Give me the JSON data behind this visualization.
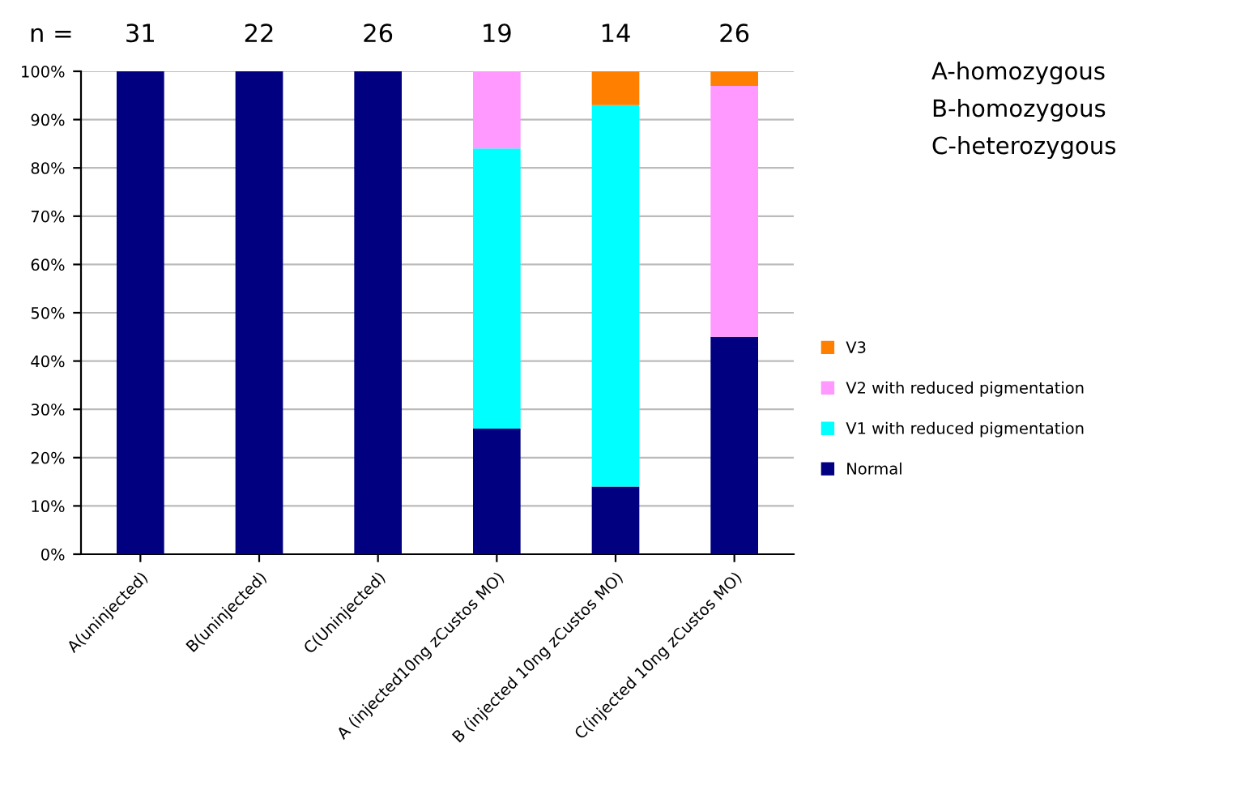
{
  "chart_data": {
    "type": "bar",
    "stacked": true,
    "categories": [
      "A(uninjected)",
      "B(uninjected)",
      "C(Uninjected)",
      "A (injected10ng zCustos MO)",
      "B (injected 10ng zCustos MO)",
      "C(injected 10ng zCustos MO)"
    ],
    "series": [
      {
        "name": "Normal",
        "color": "#000080",
        "values": [
          100,
          100,
          100,
          26,
          14,
          45
        ]
      },
      {
        "name": "V1 with reduced pigmentation",
        "color": "#00ffff",
        "values": [
          0,
          0,
          0,
          58,
          79,
          0
        ]
      },
      {
        "name": "V2 with reduced pigmentation",
        "color": "#ff99ff",
        "values": [
          0,
          0,
          0,
          16,
          0,
          52
        ]
      },
      {
        "name": "V3",
        "color": "#ff7f00",
        "values": [
          0,
          0,
          0,
          0,
          7,
          3
        ]
      }
    ],
    "ylim": [
      0,
      100
    ],
    "yticks": [
      {
        "value": 0,
        "label": "0%"
      },
      {
        "value": 10,
        "label": "10%"
      },
      {
        "value": 20,
        "label": "20%"
      },
      {
        "value": 30,
        "label": "30%"
      },
      {
        "value": 40,
        "label": "40%"
      },
      {
        "value": 50,
        "label": "50%"
      },
      {
        "value": 60,
        "label": "60%"
      },
      {
        "value": 70,
        "label": "70%"
      },
      {
        "value": 80,
        "label": "80%"
      },
      {
        "value": 90,
        "label": "90%"
      },
      {
        "value": 100,
        "label": "100%"
      }
    ],
    "grid": "y",
    "legend": "right",
    "annotations": [
      "n =",
      "31",
      "22",
      "26",
      "19",
      "14",
      "26",
      "A-homozygous",
      "B-homozygous",
      "C-heterozygous"
    ]
  }
}
